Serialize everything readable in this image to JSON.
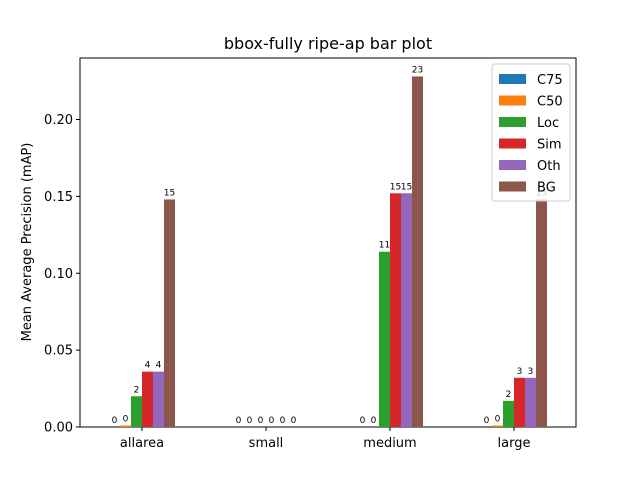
{
  "chart_data": {
    "type": "bar",
    "title": "bbox-fully ripe-ap bar plot",
    "xlabel": "",
    "ylabel": "Mean Average Precision (mAP)",
    "ylim": [
      0,
      0.24
    ],
    "yticks": [
      "0.00",
      "0.05",
      "0.10",
      "0.15",
      "0.20"
    ],
    "categories": [
      "allarea",
      "small",
      "medium",
      "large"
    ],
    "legend_position": "top-right",
    "grid": false,
    "series": [
      {
        "name": "C75",
        "color": "#1f77b4",
        "values": [
          0.0,
          0.0,
          0.0,
          0.0
        ],
        "labels": [
          "0",
          "0",
          "0",
          "0"
        ]
      },
      {
        "name": "C50",
        "color": "#ff7f0e",
        "values": [
          0.001,
          0.0,
          0.0,
          0.001
        ],
        "labels": [
          "0",
          "0",
          "0",
          "0"
        ]
      },
      {
        "name": "Loc",
        "color": "#2ca02c",
        "values": [
          0.02,
          0.0,
          0.114,
          0.017
        ],
        "labels": [
          "2",
          "0",
          "11",
          "2"
        ]
      },
      {
        "name": "Sim",
        "color": "#d62728",
        "values": [
          0.036,
          0.0,
          0.152,
          0.032
        ],
        "labels": [
          "4",
          "0",
          "15",
          "3"
        ]
      },
      {
        "name": "Oth",
        "color": "#9467bd",
        "values": [
          0.036,
          0.0,
          0.152,
          0.032
        ],
        "labels": [
          "4",
          "0",
          "15",
          "3"
        ]
      },
      {
        "name": "BG",
        "color": "#8c564b",
        "values": [
          0.148,
          0.0,
          0.228,
          0.148
        ],
        "labels": [
          "15",
          "0",
          "23",
          "15"
        ]
      }
    ]
  }
}
